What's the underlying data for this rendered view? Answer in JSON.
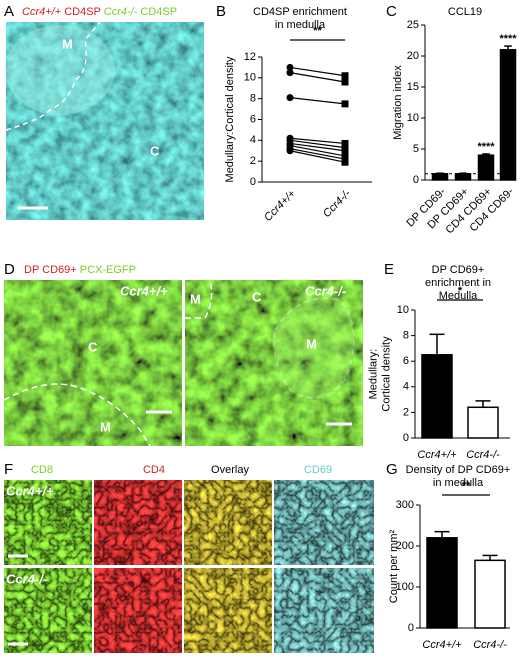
{
  "panel_letters": [
    "A",
    "B",
    "C",
    "D",
    "E",
    "F",
    "G"
  ],
  "panel_a": {
    "legend": [
      "Ccr4+/+",
      "CD4SP",
      "Ccr4-/-",
      "CD4SP"
    ],
    "labels": [
      "M",
      "C"
    ]
  },
  "panel_d": {
    "legend": [
      "DP CD69+",
      "PCX-EGFP"
    ],
    "labels": [
      "Ccr4+/+",
      "C",
      "M",
      "Ccr4-/-",
      "C",
      "M",
      "M"
    ]
  },
  "panel_f": {
    "columns": [
      "CD8",
      "CD4",
      "Overlay",
      "CD69"
    ],
    "rows": [
      "Ccr4+/+",
      "Ccr4-/-"
    ]
  },
  "chart_data": [
    {
      "type": "paired",
      "title": [
        "CD4SP enrichment",
        "in medulla"
      ],
      "y_label": [
        "Medullary:Cortical density"
      ],
      "categories": [
        "Ccr4+/+",
        "Ccr4-/-"
      ],
      "pairs": [
        [
          11.0,
          10.2
        ],
        [
          10.5,
          9.6
        ],
        [
          8.1,
          7.5
        ],
        [
          4.2,
          3.7
        ],
        [
          4.0,
          3.3
        ],
        [
          3.7,
          3.0
        ],
        [
          3.5,
          2.5
        ],
        [
          3.2,
          2.2
        ],
        [
          3.0,
          1.9
        ]
      ],
      "ylim": [
        0,
        12
      ],
      "yticks": [
        0,
        2,
        4,
        6,
        8,
        10,
        12
      ],
      "significance": "**"
    },
    {
      "type": "bar",
      "title": [
        "CCL19"
      ],
      "y_label": [
        "Migration index"
      ],
      "categories": [
        "DP CD69-",
        "DP CD69+",
        "CD4 CD69+",
        "CD4 CD69-"
      ],
      "values": [
        1.0,
        1.0,
        4.0,
        21.0
      ],
      "errors": [
        0.1,
        0.1,
        0.2,
        0.6
      ],
      "colors": [
        "#000000",
        "#000000",
        "#000000",
        "#000000"
      ],
      "ylim": [
        0,
        25
      ],
      "yticks": [
        0,
        5,
        10,
        15,
        20,
        25
      ],
      "reference_line": 1,
      "annotations": [
        {
          "text": "****",
          "category": "CD4 CD69+"
        },
        {
          "text": "****",
          "category": "CD4 CD69-"
        }
      ]
    },
    {
      "type": "bar",
      "title": [
        "DP CD69+",
        "enrichment  in",
        "Medulla"
      ],
      "y_label": [
        "Medullary:",
        "Cortical density"
      ],
      "categories": [
        "Ccr4+/+",
        "Ccr4-/-"
      ],
      "values": [
        6.5,
        2.4
      ],
      "errors": [
        1.6,
        0.5
      ],
      "colors": [
        "#000000",
        "#ffffff"
      ],
      "ylim": [
        0,
        10
      ],
      "yticks": [
        0,
        2,
        4,
        6,
        8,
        10
      ],
      "significance": "*"
    },
    {
      "type": "bar",
      "title": [
        "Density of DP CD69+",
        "in medulla"
      ],
      "y_label": [
        "Count per mm²"
      ],
      "categories": [
        "Ccr4+/+",
        "Ccr4-/-"
      ],
      "values": [
        220,
        165
      ],
      "errors": [
        15,
        12
      ],
      "colors": [
        "#000000",
        "#ffffff"
      ],
      "ylim": [
        0,
        300
      ],
      "yticks": [
        0,
        100,
        200,
        300
      ],
      "significance": "**"
    }
  ]
}
